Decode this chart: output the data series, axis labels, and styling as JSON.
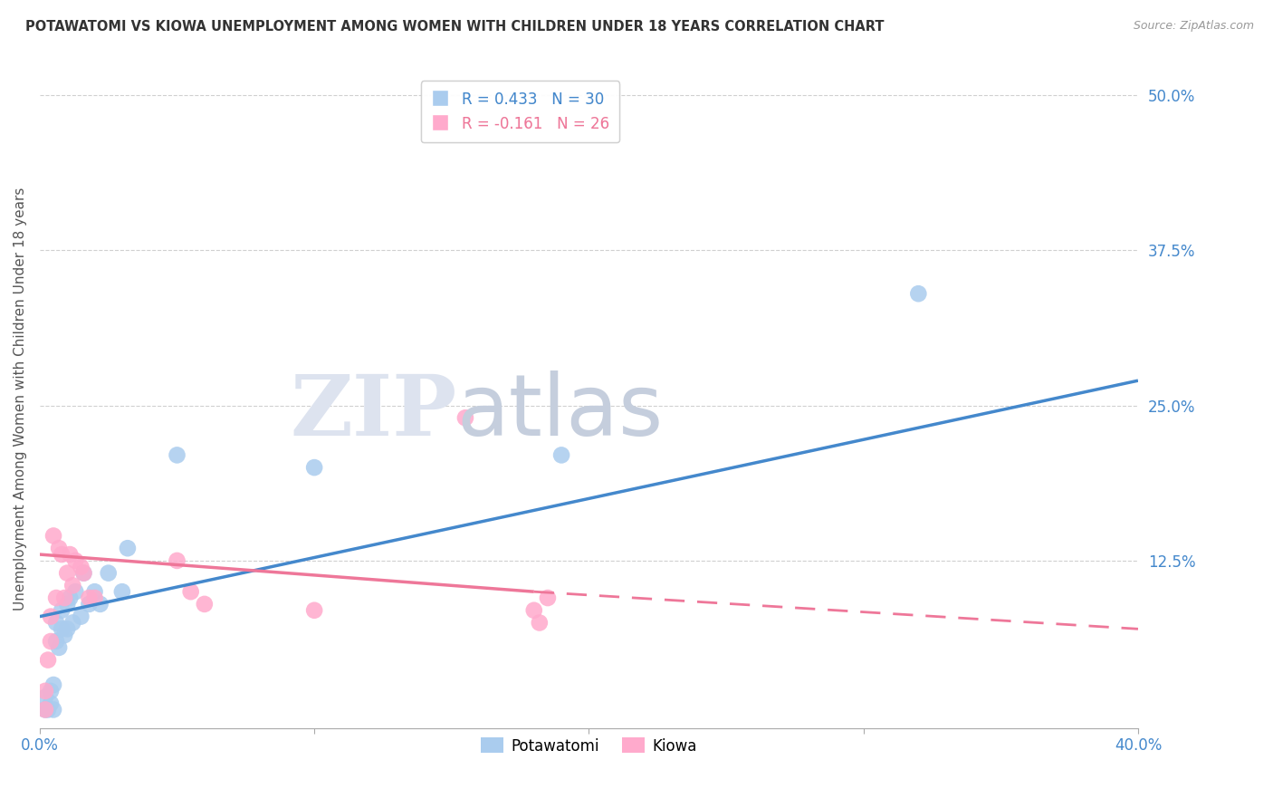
{
  "title": "POTAWATOMI VS KIOWA UNEMPLOYMENT AMONG WOMEN WITH CHILDREN UNDER 18 YEARS CORRELATION CHART",
  "source": "Source: ZipAtlas.com",
  "ylabel": "Unemployment Among Women with Children Under 18 years",
  "xlim": [
    0.0,
    0.4
  ],
  "ylim": [
    -0.01,
    0.52
  ],
  "yticks": [
    0.125,
    0.25,
    0.375,
    0.5
  ],
  "ytick_labels": [
    "12.5%",
    "25.0%",
    "37.5%",
    "50.0%"
  ],
  "xticks": [
    0.0,
    0.1,
    0.2,
    0.3,
    0.4
  ],
  "xtick_labels": [
    "0.0%",
    "",
    "",
    "",
    "40.0%"
  ],
  "potawatomi_R": 0.433,
  "potawatomi_N": 30,
  "kiowa_R": -0.161,
  "kiowa_N": 26,
  "background_color": "#ffffff",
  "plot_bg_color": "#ffffff",
  "grid_color": "#d0d0d0",
  "potawatomi_color": "#aaccee",
  "kiowa_color": "#ffaacc",
  "trend_potawatomi_color": "#4488cc",
  "trend_kiowa_color": "#ee7799",
  "potawatomi_x": [
    0.002,
    0.002,
    0.003,
    0.004,
    0.004,
    0.005,
    0.005,
    0.006,
    0.006,
    0.007,
    0.008,
    0.008,
    0.009,
    0.01,
    0.01,
    0.011,
    0.012,
    0.013,
    0.015,
    0.016,
    0.018,
    0.02,
    0.022,
    0.025,
    0.03,
    0.032,
    0.05,
    0.1,
    0.19,
    0.32
  ],
  "potawatomi_y": [
    0.005,
    0.015,
    0.005,
    0.01,
    0.02,
    0.005,
    0.025,
    0.06,
    0.075,
    0.055,
    0.07,
    0.085,
    0.065,
    0.07,
    0.09,
    0.095,
    0.075,
    0.1,
    0.08,
    0.115,
    0.09,
    0.1,
    0.09,
    0.115,
    0.1,
    0.135,
    0.21,
    0.2,
    0.21,
    0.34
  ],
  "kiowa_x": [
    0.002,
    0.002,
    0.003,
    0.004,
    0.004,
    0.005,
    0.006,
    0.007,
    0.008,
    0.009,
    0.01,
    0.011,
    0.012,
    0.013,
    0.015,
    0.016,
    0.018,
    0.02,
    0.05,
    0.055,
    0.06,
    0.1,
    0.155,
    0.18,
    0.182,
    0.185
  ],
  "kiowa_y": [
    0.005,
    0.02,
    0.045,
    0.06,
    0.08,
    0.145,
    0.095,
    0.135,
    0.13,
    0.095,
    0.115,
    0.13,
    0.105,
    0.125,
    0.12,
    0.115,
    0.095,
    0.095,
    0.125,
    0.1,
    0.09,
    0.085,
    0.24,
    0.085,
    0.075,
    0.095
  ],
  "trend_blue_x0": 0.0,
  "trend_blue_y0": 0.08,
  "trend_blue_x1": 0.4,
  "trend_blue_y1": 0.27,
  "trend_pink_x0": 0.0,
  "trend_pink_y0": 0.13,
  "trend_pink_x1": 0.18,
  "trend_pink_y1": 0.1,
  "trend_pink_dash_x0": 0.18,
  "trend_pink_dash_y0": 0.1,
  "trend_pink_dash_x1": 0.4,
  "trend_pink_dash_y1": 0.07
}
